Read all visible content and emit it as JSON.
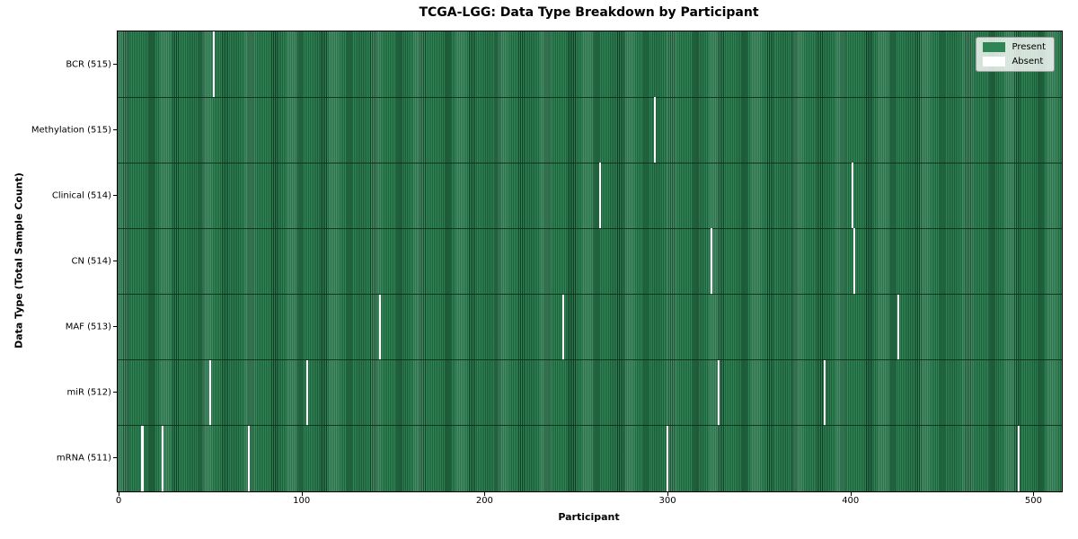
{
  "chart_data": {
    "type": "heatmap",
    "title": "TCGA-LGG: Data Type Breakdown by Participant",
    "xlabel": "Participant",
    "ylabel": "Data Type (Total Sample Count)",
    "n_participants": 516,
    "x_ticks": [
      0,
      100,
      200,
      300,
      400,
      500
    ],
    "x_range": [
      0,
      516
    ],
    "grid": false,
    "colors": {
      "present": "#2e8655",
      "stripe_dark": "#133d26",
      "absent": "#ffffff"
    },
    "legend": {
      "position": "upper right",
      "entries": [
        {
          "label": "Present",
          "color": "#2e8655"
        },
        {
          "label": "Absent",
          "color": "#ffffff"
        }
      ]
    },
    "rows": [
      {
        "label": "BCR (515)",
        "data_type": "BCR",
        "present_count": 515,
        "absent_participants": [
          52
        ]
      },
      {
        "label": "Methylation (515)",
        "data_type": "Methylation",
        "present_count": 515,
        "absent_participants": [
          293
        ]
      },
      {
        "label": "Clinical (514)",
        "data_type": "Clinical",
        "present_count": 514,
        "absent_participants": [
          263,
          401
        ]
      },
      {
        "label": "CN (514)",
        "data_type": "CN",
        "present_count": 514,
        "absent_participants": [
          324,
          402
        ]
      },
      {
        "label": "MAF (513)",
        "data_type": "MAF",
        "present_count": 513,
        "absent_participants": [
          143,
          243,
          426
        ]
      },
      {
        "label": "miR (512)",
        "data_type": "miR",
        "present_count": 512,
        "absent_participants": [
          50,
          103,
          328,
          386
        ]
      },
      {
        "label": "mRNA (511)",
        "data_type": "mRNA",
        "present_count": 511,
        "absent_participants": [
          13,
          24,
          71,
          300,
          492
        ]
      }
    ]
  }
}
